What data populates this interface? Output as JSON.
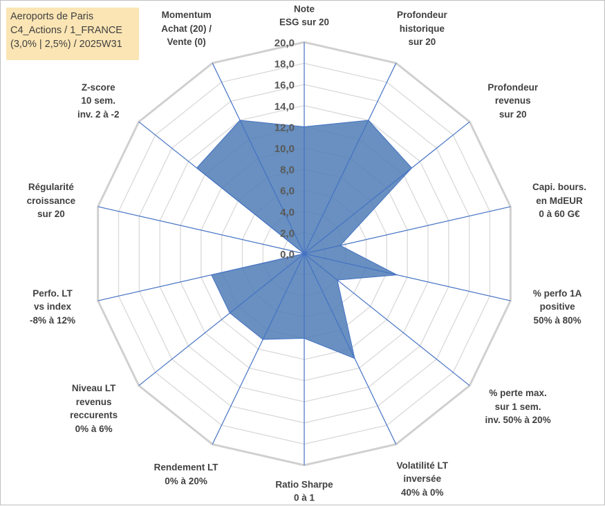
{
  "title_box": {
    "lines": [
      "Aeroports de Paris",
      "C4_Actions / 1_FRANCE",
      "(3,0% | 2,5%) / 2025W31"
    ]
  },
  "colors": {
    "series_fill": "#4f7db5",
    "series_stroke": "#4472c4",
    "grid": "#d9d9d9",
    "spokes": "#4472c4",
    "title_box_bg": "#fbe5b4",
    "text": "#404040"
  },
  "chart_data": {
    "type": "radar",
    "rlim": [
      0,
      20
    ],
    "r_ticks": [
      "0,0",
      "2,0",
      "4,0",
      "6,0",
      "8,0",
      "10,0",
      "12,0",
      "14,0",
      "16,0",
      "18,0",
      "20,0"
    ],
    "grid": true,
    "categories": [
      "Note ESG sur 20",
      "Profondeur historique sur 20",
      "Profondeur revenus sur 20",
      "Capi. bours. en MdEUR 0 à 60 G€",
      "% perfo 1A positive 50% à 80%",
      "% perte max. sur 1 sem. inv. 50% à 20%",
      "Volatilité LT inversée 40% à 0%",
      "Ratio Sharpe 0 à 1",
      "Rendement LT 0% à 20%",
      "Niveau LT revenus reccurents 0% à 6%",
      "Perfo. LT vs index -8% à 12%",
      "Régularité croissance sur 20",
      "Z-score 10 sem. inv. 2 à -2",
      "Momentum Achat (20) / Vente (0)"
    ],
    "category_lines": [
      [
        "Note",
        "ESG sur 20"
      ],
      [
        "Profondeur",
        "historique",
        "sur 20"
      ],
      [
        "Profondeur",
        "revenus",
        "sur 20"
      ],
      [
        "Capi. bours.",
        "en MdEUR",
        "0 à 60 G€"
      ],
      [
        "% perfo 1A",
        "positive",
        "50% à 80%"
      ],
      [
        "% perte max.",
        "sur 1 sem.",
        "inv. 50% à 20%"
      ],
      [
        "Volatilité LT",
        "inversée",
        "40% à 0%"
      ],
      [
        "Ratio Sharpe",
        "0 à 1"
      ],
      [
        "Rendement LT",
        "0% à 20%"
      ],
      [
        "Niveau LT",
        "revenus",
        "reccurents",
        "0% à 6%"
      ],
      [
        "Perfo. LT",
        "vs index",
        "-8% à 12%"
      ],
      [
        "Régularité",
        "croissance",
        "sur 20"
      ],
      [
        "Z-score",
        "10 sem.",
        "inv. 2 à -2"
      ],
      [
        "Momentum",
        "Achat (20) /",
        "Vente (0)"
      ]
    ],
    "series": [
      {
        "values": [
          12.0,
          14.0,
          13.0,
          3.5,
          9.0,
          4.0,
          11.0,
          8.0,
          9.0,
          9.0,
          9.0,
          0.0,
          13.0,
          14.0
        ]
      }
    ]
  }
}
